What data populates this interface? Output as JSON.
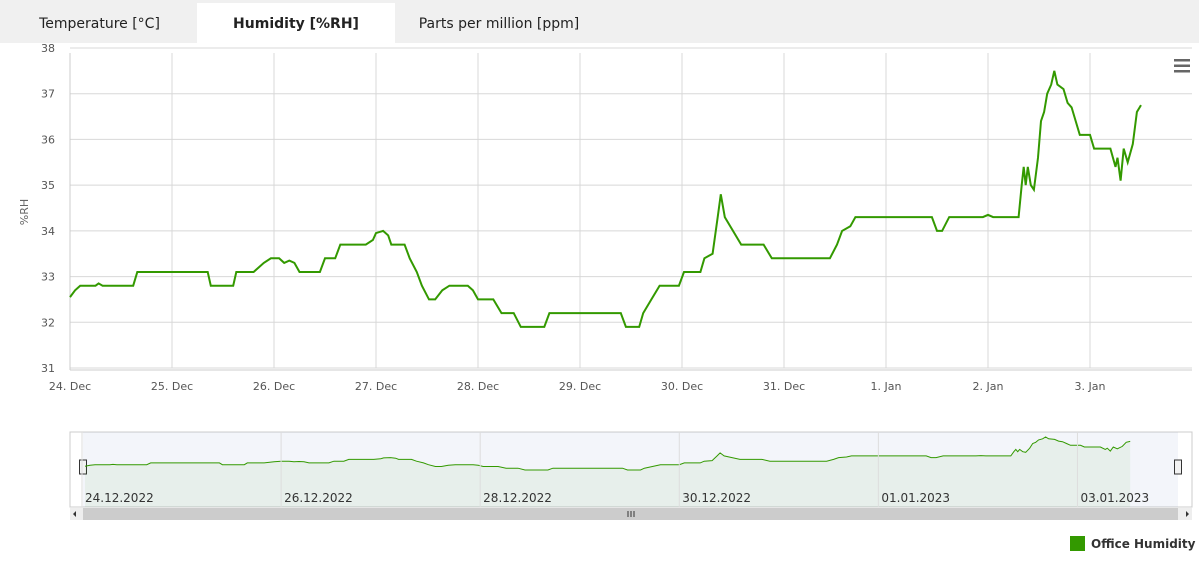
{
  "tabs": {
    "items": [
      "Temperature [°C]",
      "Humidity [%RH]",
      "Parts per million [ppm]"
    ],
    "active": 1
  },
  "chart_data": {
    "type": "line",
    "y_label": "%RH",
    "xlim": [
      0,
      11
    ],
    "xticks": [
      {
        "value": 0,
        "label": "24. Dec"
      },
      {
        "value": 1,
        "label": "25. Dec"
      },
      {
        "value": 2,
        "label": "26. Dec"
      },
      {
        "value": 3,
        "label": "27. Dec"
      },
      {
        "value": 4,
        "label": "28. Dec"
      },
      {
        "value": 5,
        "label": "29. Dec"
      },
      {
        "value": 6,
        "label": "30. Dec"
      },
      {
        "value": 7,
        "label": "31. Dec"
      },
      {
        "value": 8,
        "label": "1. Jan"
      },
      {
        "value": 9,
        "label": "2. Jan"
      },
      {
        "value": 10,
        "label": "3. Jan"
      }
    ],
    "ylim": [
      31,
      38
    ],
    "yticks": [
      31,
      32,
      33,
      34,
      35,
      36,
      37,
      38
    ],
    "grid": true,
    "x": [
      0,
      0.05,
      0.1,
      0.25,
      0.28,
      0.32,
      0.62,
      0.66,
      1.35,
      1.38,
      1.6,
      1.63,
      1.8,
      1.9,
      1.97,
      2.05,
      2.1,
      2.15,
      2.2,
      2.25,
      2.45,
      2.5,
      2.6,
      2.65,
      2.9,
      2.97,
      3.0,
      3.07,
      3.12,
      3.15,
      3.28,
      3.33,
      3.4,
      3.45,
      3.52,
      3.58,
      3.65,
      3.72,
      3.9,
      3.95,
      4.0,
      4.15,
      4.23,
      4.35,
      4.42,
      4.65,
      4.7,
      5.4,
      5.45,
      5.58,
      5.62,
      5.7,
      5.78,
      5.97,
      6.02,
      6.18,
      6.22,
      6.3,
      6.35,
      6.38,
      6.42,
      6.5,
      6.58,
      6.8,
      6.88,
      7.45,
      7.52,
      7.57,
      7.65,
      7.7,
      8.45,
      8.5,
      8.55,
      8.62,
      8.95,
      9.0,
      9.05,
      9.3,
      9.33,
      9.35,
      9.37,
      9.39,
      9.42,
      9.45,
      9.49,
      9.52,
      9.55,
      9.58,
      9.62,
      9.65,
      9.68,
      9.74,
      9.78,
      9.82,
      9.86,
      9.9,
      10.0,
      10.04,
      10.2,
      10.25,
      10.27,
      10.3,
      10.33,
      10.37,
      10.42,
      10.46,
      10.5
    ],
    "series": [
      {
        "name": "Office Humidity",
        "color": "#339900",
        "values": [
          32.55,
          32.7,
          32.8,
          32.8,
          32.85,
          32.8,
          32.8,
          33.1,
          33.1,
          32.8,
          32.8,
          33.1,
          33.1,
          33.3,
          33.4,
          33.4,
          33.3,
          33.35,
          33.3,
          33.1,
          33.1,
          33.4,
          33.4,
          33.7,
          33.7,
          33.8,
          33.95,
          34.0,
          33.9,
          33.7,
          33.7,
          33.4,
          33.1,
          32.8,
          32.5,
          32.5,
          32.7,
          32.8,
          32.8,
          32.7,
          32.5,
          32.5,
          32.2,
          32.2,
          31.9,
          31.9,
          32.2,
          32.2,
          31.9,
          31.9,
          32.2,
          32.5,
          32.8,
          32.8,
          33.1,
          33.1,
          33.4,
          33.5,
          34.3,
          34.8,
          34.3,
          34.0,
          33.7,
          33.7,
          33.4,
          33.4,
          33.7,
          34.0,
          34.1,
          34.3,
          34.3,
          34.0,
          34.0,
          34.3,
          34.3,
          34.35,
          34.3,
          34.3,
          35.0,
          35.4,
          35.0,
          35.4,
          35.0,
          34.9,
          35.6,
          36.4,
          36.6,
          37.0,
          37.2,
          37.5,
          37.2,
          37.1,
          36.8,
          36.7,
          36.4,
          36.1,
          36.1,
          35.8,
          35.8,
          35.4,
          35.6,
          35.1,
          35.8,
          35.5,
          35.9,
          36.6,
          36.75
        ]
      }
    ],
    "navigator": {
      "xticks": [
        {
          "value": 0,
          "label": "24.12.2022"
        },
        {
          "value": 2,
          "label": "26.12.2022"
        },
        {
          "value": 4,
          "label": "28.12.2022"
        },
        {
          "value": 6,
          "label": "30.12.2022"
        },
        {
          "value": 8,
          "label": "01.01.2023"
        },
        {
          "value": 10,
          "label": "03.01.2023"
        }
      ]
    }
  }
}
